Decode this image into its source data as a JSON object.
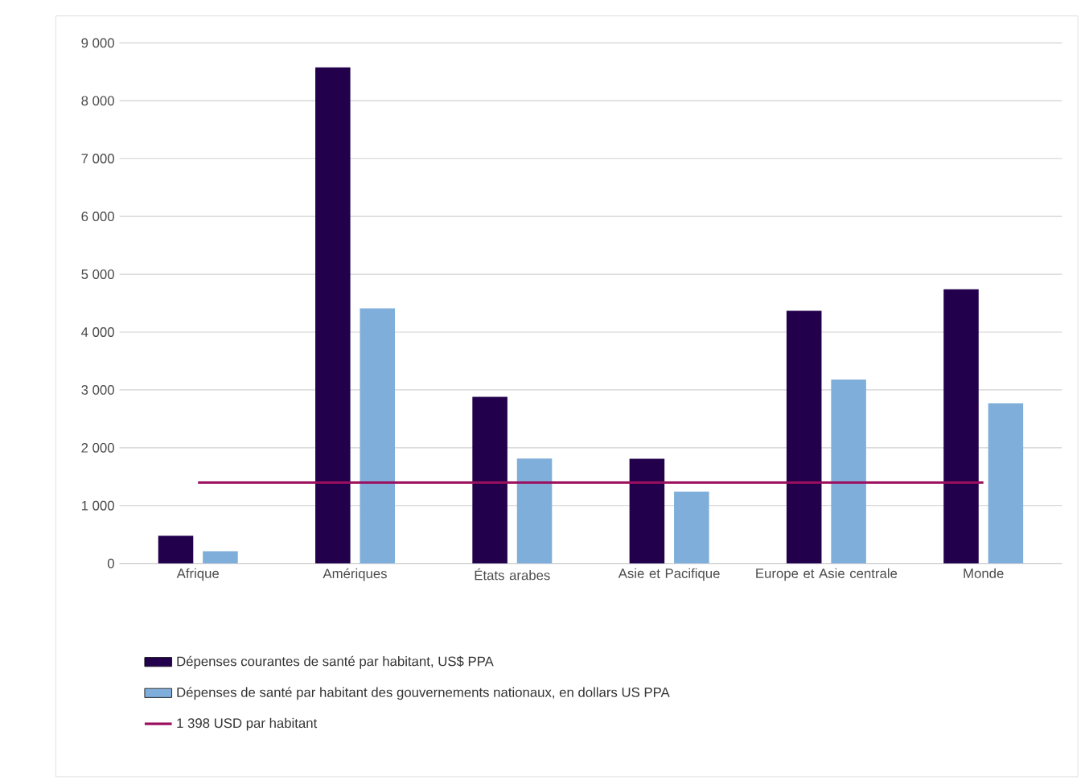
{
  "chart_data": {
    "type": "bar",
    "categories": [
      "Afrique",
      "Amériques",
      "États arabes",
      "Asie et Pacifique",
      "Europe et Asie centrale",
      "Monde"
    ],
    "series": [
      {
        "name": "Dépenses courantes de santé par habitant, US$ PPA",
        "color": "#22004c",
        "values": [
          480,
          8580,
          2880,
          1810,
          4370,
          4740
        ]
      },
      {
        "name": "Dépenses de santé par habitant des gouvernements nationaux, en dollars US PPA",
        "color": "#7faedb",
        "values": [
          210,
          4410,
          1815,
          1240,
          3180,
          2770
        ]
      },
      {
        "name": "1 398 USD par habitant",
        "type": "line",
        "color": "#9b0f5f",
        "values": [
          1398,
          1398,
          1398,
          1398,
          1398,
          1398
        ]
      }
    ],
    "ylim": [
      0,
      9000
    ],
    "yticks": [
      {
        "value": 0,
        "label": "0"
      },
      {
        "value": 1000,
        "label": "1 000"
      },
      {
        "value": 2000,
        "label": "2 000"
      },
      {
        "value": 3000,
        "label": "3 000"
      },
      {
        "value": 4000,
        "label": "4 000"
      },
      {
        "value": 5000,
        "label": "5 000"
      },
      {
        "value": 6000,
        "label": "6 000"
      },
      {
        "value": 7000,
        "label": "7 000"
      },
      {
        "value": 8000,
        "label": "8 000"
      },
      {
        "value": 9000,
        "label": "9 000"
      }
    ],
    "grid": "y",
    "legend": "bottom"
  }
}
